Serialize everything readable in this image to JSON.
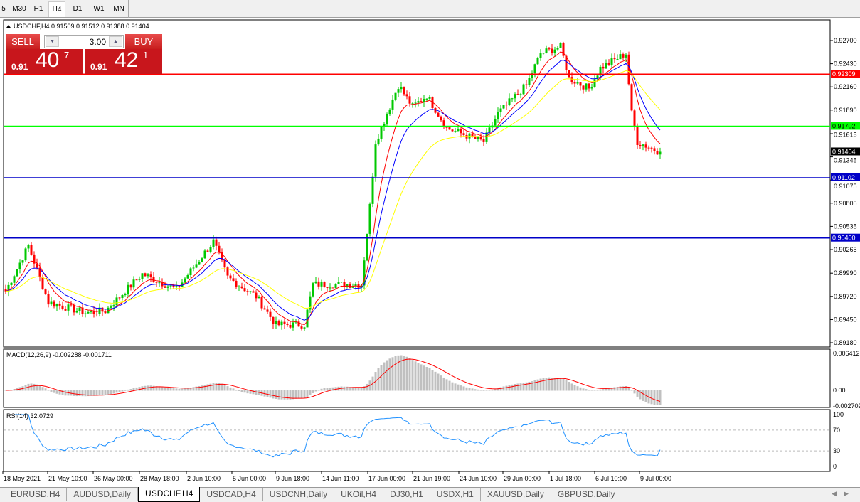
{
  "timeframes": [
    {
      "label": "5"
    },
    {
      "label": "M30"
    },
    {
      "label": "H1"
    },
    {
      "label": "H4",
      "active": true
    },
    {
      "label": "D1"
    },
    {
      "label": "W1"
    },
    {
      "label": "MN"
    }
  ],
  "chart": {
    "symbol_header": "USDCHF,H4  0.91509 0.91512 0.91388 0.91404"
  },
  "trade_panel": {
    "sell_label": "SELL",
    "buy_label": "BUY",
    "lot": "3.00",
    "sell_prefix": "0.91",
    "sell_big": "40",
    "sell_sup": "7",
    "buy_prefix": "0.91",
    "buy_big": "42",
    "buy_sup": "1"
  },
  "price_axis": {
    "ticks": [
      "0.92700",
      "0.92430",
      "0.92160",
      "0.91890",
      "0.91615",
      "0.91345",
      "0.91075",
      "0.90805",
      "0.90535",
      "0.90265",
      "0.89990",
      "0.89720",
      "0.89450",
      "0.89180"
    ],
    "tick_values": [
      0.927,
      0.9243,
      0.9216,
      0.9189,
      0.91615,
      0.91345,
      0.91075,
      0.90805,
      0.90535,
      0.90265,
      0.8999,
      0.8972,
      0.8945,
      0.8918
    ],
    "current_price": "0.91404"
  },
  "hlines": [
    {
      "label": "0.92309",
      "value": 0.92309,
      "color": "#ff0000"
    },
    {
      "label": "0.91702",
      "value": 0.91702,
      "color": "#00ff00"
    },
    {
      "label": "0.91102",
      "value": 0.91102,
      "color": "#0000c8"
    },
    {
      "label": "0.90400",
      "value": 0.904,
      "color": "#0000c8"
    }
  ],
  "colors": {
    "bull": "#00c800",
    "bear": "#ff0000",
    "ma_fast": "#ff0000",
    "ma_mid": "#0000ff",
    "ma_slow": "#ffff00",
    "macd_hist": "#c0c0c0",
    "macd_signal": "#ff0000",
    "rsi": "#1e90ff"
  },
  "macd": {
    "label": "MACD(12,26,9) -0.002288 -0.001711",
    "ticks": [
      "0.006412",
      "0.00",
      "-0.002702"
    ]
  },
  "rsi": {
    "label": "RSI(14) 32.0729",
    "ticks": [
      "100",
      "70",
      "30",
      "0"
    ],
    "levels": [
      70,
      30
    ]
  },
  "time_axis": [
    "18 May 2021",
    "21 May 10:00",
    "26 May 00:00",
    "28 May 18:00",
    "2 Jun 10:00",
    "5 Jun 00:00",
    "9 Jun 18:00",
    "14 Jun 11:00",
    "17 Jun 00:00",
    "21 Jun 19:00",
    "24 Jun 10:00",
    "29 Jun 00:00",
    "1 Jul 18:00",
    "6 Jul 10:00",
    "9 Jul 00:00"
  ],
  "price_path": [
    [
      0,
      0.8978
    ],
    [
      8,
      0.9031
    ],
    [
      15,
      0.8965
    ],
    [
      28,
      0.8953
    ],
    [
      35,
      0.8955
    ],
    [
      48,
      0.8998
    ],
    [
      60,
      0.898
    ],
    [
      73,
      0.9036
    ],
    [
      78,
      0.8994
    ],
    [
      88,
      0.8972
    ],
    [
      95,
      0.8939
    ],
    [
      105,
      0.8939
    ],
    [
      108,
      0.8986
    ],
    [
      125,
      0.8986
    ],
    [
      128,
      0.9077
    ],
    [
      130,
      0.9152
    ],
    [
      138,
      0.9218
    ],
    [
      143,
      0.9193
    ],
    [
      148,
      0.9206
    ],
    [
      155,
      0.9168
    ],
    [
      168,
      0.9152
    ],
    [
      173,
      0.9185
    ],
    [
      183,
      0.9218
    ],
    [
      188,
      0.9255
    ],
    [
      195,
      0.9263
    ],
    [
      198,
      0.9226
    ],
    [
      205,
      0.9214
    ],
    [
      209,
      0.9238
    ],
    [
      218,
      0.9255
    ],
    [
      220,
      0.9185
    ],
    [
      222,
      0.9152
    ],
    [
      230,
      0.914
    ]
  ],
  "tabs": [
    {
      "label": "EURUSD,H4"
    },
    {
      "label": "AUDUSD,Daily"
    },
    {
      "label": "USDCHF,H4",
      "active": true
    },
    {
      "label": "USDCAD,H4"
    },
    {
      "label": "USDCNH,Daily"
    },
    {
      "label": "UKOil,H4"
    },
    {
      "label": "DJ30,H1"
    },
    {
      "label": "USDX,H1"
    },
    {
      "label": "XAUUSD,Daily"
    },
    {
      "label": "GBPUSD,Daily"
    }
  ]
}
